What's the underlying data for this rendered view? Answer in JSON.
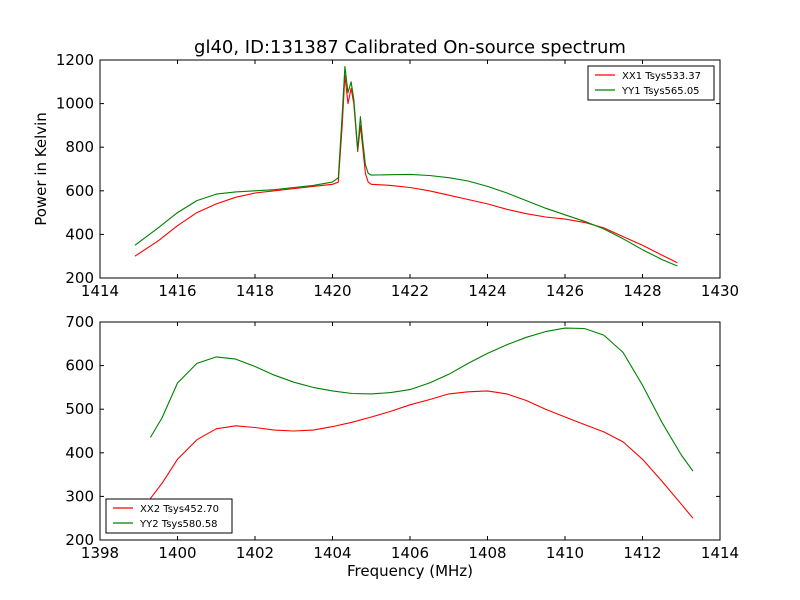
{
  "chart_data": [
    {
      "type": "line",
      "title": "gl40, ID:131387 Calibrated On-source spectrum",
      "xlabel": "",
      "ylabel": "Power in Kelvin",
      "xlim": [
        1414,
        1430
      ],
      "ylim": [
        200,
        1200
      ],
      "xticks": [
        "1414",
        "1416",
        "1418",
        "1420",
        "1422",
        "1424",
        "1426",
        "1428",
        "1430"
      ],
      "yticks": [
        "200",
        "400",
        "600",
        "800",
        "1000",
        "1200"
      ],
      "legend_position": "top-right",
      "series": [
        {
          "name": "XX1 Tsys533.37",
          "color": "#ff0000",
          "x": [
            1414.9,
            1415.5,
            1416.0,
            1416.5,
            1417.0,
            1417.5,
            1418.0,
            1418.5,
            1419.0,
            1419.5,
            1420.0,
            1420.15,
            1420.25,
            1420.32,
            1420.4,
            1420.48,
            1420.55,
            1420.65,
            1420.72,
            1420.78,
            1420.85,
            1420.92,
            1421.0,
            1421.5,
            1422.0,
            1422.5,
            1423.0,
            1423.5,
            1424.0,
            1424.5,
            1425.0,
            1425.5,
            1426.0,
            1426.5,
            1427.0,
            1427.5,
            1428.0,
            1428.5,
            1428.9
          ],
          "y": [
            300,
            370,
            440,
            500,
            540,
            570,
            590,
            600,
            610,
            620,
            630,
            640,
            900,
            1130,
            1000,
            1070,
            1000,
            780,
            900,
            800,
            680,
            640,
            630,
            625,
            615,
            600,
            580,
            560,
            540,
            515,
            495,
            480,
            470,
            455,
            430,
            390,
            350,
            305,
            270
          ]
        },
        {
          "name": "YY1 Tsys565.05",
          "color": "#008000",
          "x": [
            1414.9,
            1415.5,
            1416.0,
            1416.5,
            1417.0,
            1417.5,
            1418.0,
            1418.5,
            1419.0,
            1419.5,
            1420.0,
            1420.15,
            1420.25,
            1420.32,
            1420.4,
            1420.48,
            1420.55,
            1420.65,
            1420.72,
            1420.78,
            1420.85,
            1420.92,
            1421.0,
            1421.5,
            1422.0,
            1422.5,
            1423.0,
            1423.5,
            1424.0,
            1424.5,
            1425.0,
            1425.5,
            1426.0,
            1426.5,
            1427.0,
            1427.5,
            1428.0,
            1428.5,
            1428.9
          ],
          "y": [
            350,
            430,
            500,
            555,
            585,
            595,
            600,
            605,
            615,
            625,
            640,
            660,
            950,
            1170,
            1050,
            1100,
            1020,
            790,
            940,
            830,
            720,
            680,
            672,
            674,
            675,
            670,
            660,
            645,
            620,
            590,
            555,
            520,
            490,
            460,
            425,
            380,
            330,
            285,
            255
          ]
        }
      ]
    },
    {
      "type": "line",
      "title": "",
      "xlabel": "Frequency (MHz)",
      "ylabel": "",
      "xlim": [
        1398,
        1414
      ],
      "ylim": [
        200,
        700
      ],
      "xticks": [
        "1398",
        "1400",
        "1402",
        "1404",
        "1406",
        "1408",
        "1410",
        "1412",
        "1414"
      ],
      "yticks": [
        "200",
        "300",
        "400",
        "500",
        "600",
        "700"
      ],
      "legend_position": "bottom-left",
      "series": [
        {
          "name": "XX2 Tsys452.70",
          "color": "#ff0000",
          "x": [
            1399.3,
            1399.6,
            1400.0,
            1400.5,
            1401.0,
            1401.5,
            1402.0,
            1402.5,
            1403.0,
            1403.5,
            1404.0,
            1404.5,
            1405.0,
            1405.5,
            1406.0,
            1406.5,
            1407.0,
            1407.5,
            1408.0,
            1408.5,
            1409.0,
            1409.5,
            1410.0,
            1410.5,
            1411.0,
            1411.5,
            1412.0,
            1412.5,
            1413.0,
            1413.3
          ],
          "y": [
            295,
            330,
            385,
            430,
            455,
            462,
            458,
            452,
            450,
            452,
            460,
            470,
            482,
            495,
            510,
            522,
            535,
            540,
            542,
            535,
            520,
            500,
            482,
            465,
            448,
            425,
            385,
            335,
            282,
            250
          ]
        },
        {
          "name": "YY2 Tsys580.58",
          "color": "#008000",
          "x": [
            1399.3,
            1399.6,
            1400.0,
            1400.5,
            1401.0,
            1401.5,
            1402.0,
            1402.5,
            1403.0,
            1403.5,
            1404.0,
            1404.5,
            1405.0,
            1405.5,
            1406.0,
            1406.5,
            1407.0,
            1407.5,
            1408.0,
            1408.5,
            1409.0,
            1409.5,
            1410.0,
            1410.5,
            1411.0,
            1411.5,
            1412.0,
            1412.5,
            1413.0,
            1413.3
          ],
          "y": [
            435,
            480,
            560,
            605,
            620,
            615,
            598,
            578,
            562,
            550,
            542,
            536,
            535,
            538,
            545,
            560,
            580,
            605,
            628,
            648,
            665,
            678,
            686,
            685,
            670,
            630,
            555,
            470,
            395,
            358
          ]
        }
      ]
    }
  ]
}
